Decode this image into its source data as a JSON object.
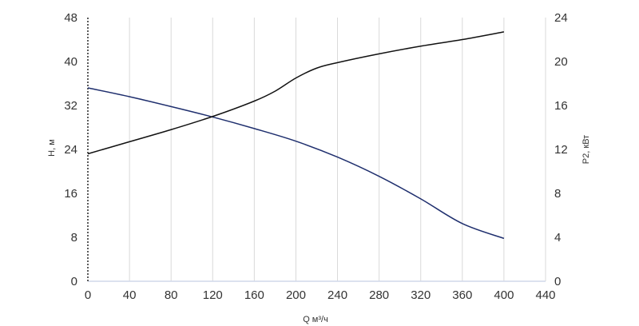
{
  "chart_data": {
    "type": "line",
    "xlabel": "Q м³/ч",
    "ylabel_left": "H, м",
    "ylabel_right": "P2, кВт",
    "xlim": [
      0,
      440
    ],
    "ylim_left": [
      0,
      48
    ],
    "ylim_right": [
      0,
      24
    ],
    "x_ticks": [
      0,
      40,
      80,
      120,
      160,
      200,
      240,
      280,
      320,
      360,
      400,
      440
    ],
    "y_ticks_left": [
      0,
      8,
      16,
      24,
      32,
      40,
      48
    ],
    "y_ticks_right": [
      0,
      4,
      8,
      12,
      16,
      20,
      24
    ],
    "grid": "vertical",
    "series": [
      {
        "name": "H",
        "axis": "left",
        "color": "#1f2f6e",
        "x": [
          0,
          40,
          80,
          120,
          160,
          200,
          240,
          280,
          320,
          360,
          400
        ],
        "y": [
          35.2,
          33.6,
          31.8,
          29.9,
          27.8,
          25.5,
          22.6,
          19.1,
          15.0,
          10.5,
          7.8
        ]
      },
      {
        "name": "P2",
        "axis": "right",
        "color": "#111111",
        "x": [
          0,
          40,
          80,
          120,
          160,
          180,
          200,
          220,
          240,
          280,
          320,
          360,
          400
        ],
        "y": [
          11.6,
          12.7,
          13.8,
          15.0,
          16.4,
          17.3,
          18.5,
          19.4,
          19.9,
          20.7,
          21.4,
          22.0,
          22.7
        ]
      }
    ]
  }
}
